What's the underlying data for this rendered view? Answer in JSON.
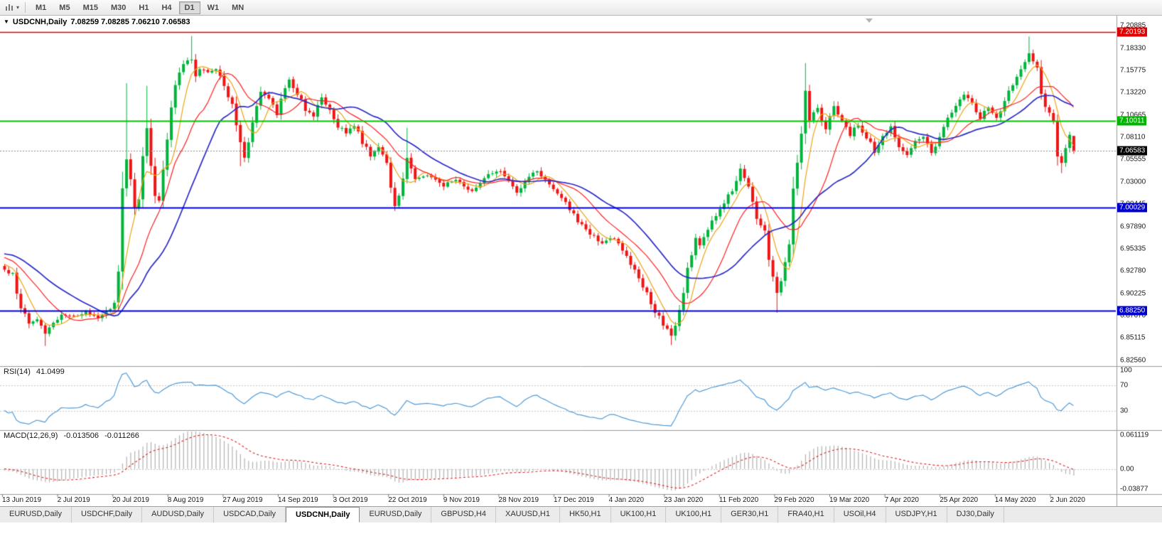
{
  "toolbar": {
    "caret": "▾",
    "timeframes": [
      "M1",
      "M5",
      "M15",
      "M30",
      "H1",
      "H4",
      "D1",
      "W1",
      "MN"
    ],
    "active_timeframe": "D1"
  },
  "chart_header": {
    "collapse_icon": "▼",
    "symbol_title": "USDCNH,Daily",
    "ohlc": "7.08259 7.08285 7.06210 7.06583"
  },
  "indicators": {
    "rsi": {
      "label": "RSI(14)",
      "value": "41.0499",
      "axis_labels": [
        100,
        70,
        30
      ],
      "levels": [
        70,
        30
      ],
      "line_color": "#4f9bd8",
      "range": [
        0,
        100
      ]
    },
    "macd": {
      "label": "MACD(12,26,9)",
      "macd_value": "-0.013506",
      "signal_value": "-0.011266",
      "axis_labels": [
        {
          "text": "0.061119",
          "value": 0.061119
        },
        {
          "text": "0.00",
          "value": 0
        },
        {
          "text": "-0.03877",
          "value": -0.03877
        }
      ],
      "scale_max": 0.061119,
      "scale_min": -0.03877,
      "histogram_color": "#b2b2b2",
      "signal_color": "#dd2222"
    }
  },
  "chart_data": {
    "type": "candlestick",
    "symbol": "USDCNH",
    "timeframe": "Daily",
    "last_ohlc": {
      "open": 7.08259,
      "high": 7.08285,
      "low": 7.0621,
      "close": 7.06583
    },
    "y_range": [
      6.8206,
      7.209
    ],
    "y_tick_labels": [
      "7.20885",
      "7.18330",
      "7.15775",
      "7.13220",
      "7.10665",
      "7.08110",
      "7.05555",
      "7.03000",
      "7.00445",
      "6.97890",
      "6.95335",
      "6.92780",
      "6.90225",
      "6.87670",
      "6.85115",
      "6.82560"
    ],
    "x_tick_labels": [
      "13 Jun 2019",
      "2 Jul 2019",
      "20 Jul 2019",
      "8 Aug 2019",
      "27 Aug 2019",
      "14 Sep 2019",
      "3 Oct 2019",
      "22 Oct 2019",
      "9 Nov 2019",
      "28 Nov 2019",
      "17 Dec 2019",
      "4 Jan 2020",
      "23 Jan 2020",
      "11 Feb 2020",
      "29 Feb 2020",
      "19 Mar 2020",
      "7 Apr 2020",
      "25 Apr 2020",
      "14 May 2020",
      "2 Jun 2020"
    ],
    "visible_candles": 264,
    "close_anchors": [
      [
        0,
        6.928
      ],
      [
        2,
        6.923
      ],
      [
        4,
        6.886
      ],
      [
        6,
        6.867
      ],
      [
        8,
        6.874
      ],
      [
        10,
        6.857
      ],
      [
        12,
        6.87
      ],
      [
        14,
        6.878
      ],
      [
        17,
        6.876
      ],
      [
        20,
        6.882
      ],
      [
        23,
        6.875
      ],
      [
        25,
        6.881
      ],
      [
        27,
        6.891
      ],
      [
        28,
        6.928
      ],
      [
        29,
        7.025
      ],
      [
        30,
        7.056
      ],
      [
        31,
        7.03
      ],
      [
        32,
        6.998
      ],
      [
        33,
        7.012
      ],
      [
        34,
        7.06
      ],
      [
        35,
        7.092
      ],
      [
        36,
        7.05
      ],
      [
        37,
        7.012
      ],
      [
        38,
        7.006
      ],
      [
        39,
        7.042
      ],
      [
        40,
        7.075
      ],
      [
        41,
        7.112
      ],
      [
        42,
        7.142
      ],
      [
        44,
        7.163
      ],
      [
        46,
        7.172
      ],
      [
        47,
        7.152
      ],
      [
        48,
        7.16
      ],
      [
        50,
        7.156
      ],
      [
        52,
        7.158
      ],
      [
        54,
        7.143
      ],
      [
        56,
        7.118
      ],
      [
        58,
        7.075
      ],
      [
        59,
        7.058
      ],
      [
        60,
        7.072
      ],
      [
        61,
        7.096
      ],
      [
        63,
        7.134
      ],
      [
        65,
        7.125
      ],
      [
        67,
        7.106
      ],
      [
        68,
        7.124
      ],
      [
        70,
        7.146
      ],
      [
        72,
        7.132
      ],
      [
        74,
        7.112
      ],
      [
        76,
        7.106
      ],
      [
        78,
        7.126
      ],
      [
        80,
        7.112
      ],
      [
        82,
        7.094
      ],
      [
        84,
        7.086
      ],
      [
        86,
        7.095
      ],
      [
        88,
        7.076
      ],
      [
        90,
        7.06
      ],
      [
        92,
        7.07
      ],
      [
        94,
        7.05
      ],
      [
        96,
        7.0
      ],
      [
        97,
        7.012
      ],
      [
        99,
        7.058
      ],
      [
        101,
        7.032
      ],
      [
        104,
        7.036
      ],
      [
        108,
        7.026
      ],
      [
        111,
        7.032
      ],
      [
        115,
        7.018
      ],
      [
        118,
        7.036
      ],
      [
        122,
        7.042
      ],
      [
        126,
        7.018
      ],
      [
        129,
        7.036
      ],
      [
        131,
        7.042
      ],
      [
        134,
        7.028
      ],
      [
        137,
        7.012
      ],
      [
        139,
        6.998
      ],
      [
        143,
        6.974
      ],
      [
        147,
        6.96
      ],
      [
        150,
        6.966
      ],
      [
        153,
        6.944
      ],
      [
        156,
        6.922
      ],
      [
        159,
        6.89
      ],
      [
        162,
        6.866
      ],
      [
        164,
        6.854
      ],
      [
        166,
        6.88
      ],
      [
        168,
        6.93
      ],
      [
        170,
        6.968
      ],
      [
        171,
        6.958
      ],
      [
        174,
        6.986
      ],
      [
        177,
        7.006
      ],
      [
        179,
        7.022
      ],
      [
        181,
        7.046
      ],
      [
        183,
        7.028
      ],
      [
        185,
        6.99
      ],
      [
        187,
        6.974
      ],
      [
        188,
        6.944
      ],
      [
        190,
        6.902
      ],
      [
        191,
        6.916
      ],
      [
        193,
        6.962
      ],
      [
        194,
        7.02
      ],
      [
        196,
        7.086
      ],
      [
        197,
        7.132
      ],
      [
        198,
        7.102
      ],
      [
        200,
        7.116
      ],
      [
        202,
        7.09
      ],
      [
        204,
        7.116
      ],
      [
        206,
        7.098
      ],
      [
        208,
        7.084
      ],
      [
        210,
        7.096
      ],
      [
        212,
        7.082
      ],
      [
        214,
        7.064
      ],
      [
        216,
        7.082
      ],
      [
        218,
        7.092
      ],
      [
        220,
        7.07
      ],
      [
        222,
        7.062
      ],
      [
        224,
        7.076
      ],
      [
        226,
        7.082
      ],
      [
        228,
        7.064
      ],
      [
        230,
        7.082
      ],
      [
        232,
        7.102
      ],
      [
        234,
        7.116
      ],
      [
        236,
        7.13
      ],
      [
        238,
        7.118
      ],
      [
        240,
        7.102
      ],
      [
        242,
        7.116
      ],
      [
        244,
        7.104
      ],
      [
        246,
        7.122
      ],
      [
        248,
        7.142
      ],
      [
        250,
        7.16
      ],
      [
        252,
        7.176
      ],
      [
        254,
        7.158
      ],
      [
        255,
        7.132
      ],
      [
        256,
        7.118
      ],
      [
        258,
        7.096
      ],
      [
        259,
        7.062
      ],
      [
        260,
        7.05
      ],
      [
        261,
        7.066
      ],
      [
        262,
        7.083
      ],
      [
        263,
        7.06583
      ]
    ],
    "wick_overrides": {
      "10": {
        "low": 6.842
      },
      "30": {
        "high": 7.143
      },
      "35": {
        "high": 7.14
      },
      "46": {
        "high": 7.197
      },
      "58": {
        "low": 7.048
      },
      "99": {
        "high": 7.092
      },
      "164": {
        "low": 6.843
      },
      "190": {
        "low": 6.88
      },
      "197": {
        "high": 7.166
      },
      "252": {
        "high": 7.1965
      },
      "260": {
        "low": 7.04
      }
    },
    "horizontal_levels": [
      {
        "price": 7.20193,
        "label": "7.20193",
        "color": "#e00000",
        "badge_bg": "#e00000",
        "width": 1.4,
        "style": "solid"
      },
      {
        "price": 7.10011,
        "label": "7.10011",
        "color": "#00c400",
        "badge_bg": "#00b400",
        "width": 2,
        "style": "solid"
      },
      {
        "price": 7.06583,
        "label": "7.06583",
        "color": "#8a8a8a",
        "badge_bg": "#000000",
        "width": 1,
        "style": "dotted"
      },
      {
        "price": 7.00029,
        "label": "7.00029",
        "color": "#0000e0",
        "badge_bg": "#0000cc",
        "width": 2,
        "style": "solid"
      },
      {
        "price": 6.8825,
        "label": "6.88250",
        "color": "#0000e0",
        "badge_bg": "#0000cc",
        "width": 2,
        "style": "solid"
      }
    ],
    "moving_averages": [
      {
        "name": "fast",
        "period": 6,
        "color": "#eda315"
      },
      {
        "name": "medium",
        "period": 14,
        "color": "#ff2020"
      },
      {
        "name": "slow",
        "period": 25,
        "color": "#2c2cc8"
      }
    ]
  },
  "tabs": {
    "items": [
      "EURUSD,Daily",
      "USDCHF,Daily",
      "AUDUSD,Daily",
      "USDCAD,Daily",
      "USDCNH,Daily",
      "EURUSD,Daily",
      "GBPUSD,H4",
      "XAUUSD,H1",
      "HK50,H1",
      "UK100,H1",
      "UK100,H1",
      "GER30,H1",
      "FRA40,H1",
      "USOil,H4",
      "USDJPY,H1",
      "DJ30,Daily"
    ],
    "active_index": 4
  },
  "colors": {
    "bull": "#00b43c",
    "bear": "#ee1515",
    "panel_separator": "#9a9a9a",
    "grid_dotted": "#c6c6c6",
    "axis_text": "#1a1a1a"
  }
}
